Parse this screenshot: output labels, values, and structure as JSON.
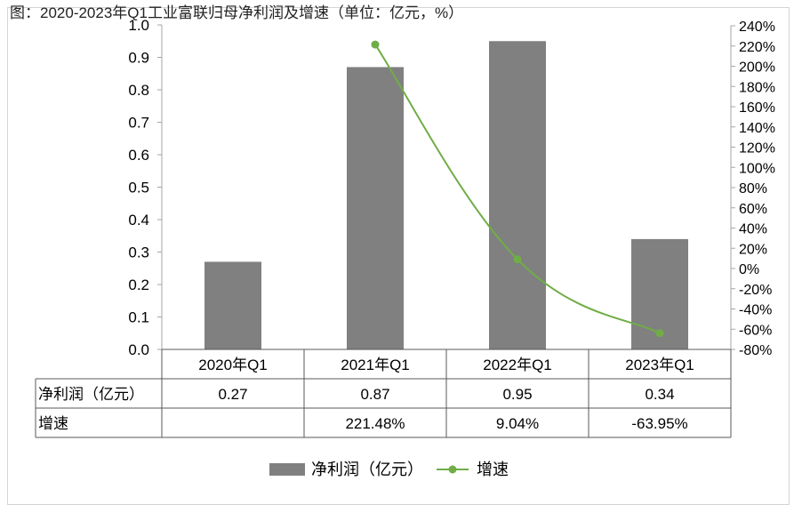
{
  "title": "图：2020-2023年Q1工业富联归母净利润及增速（单位：亿元，%）",
  "chart_data": {
    "type": "bar",
    "categories": [
      "2020年Q1",
      "2021年Q1",
      "2022年Q1",
      "2023年Q1"
    ],
    "series": [
      {
        "name": "净利润（亿元）",
        "type": "bar",
        "axis": "left",
        "values": [
          0.27,
          0.87,
          0.95,
          0.34
        ],
        "color": "#808080"
      },
      {
        "name": "增速",
        "type": "line",
        "axis": "right",
        "values": [
          null,
          221.48,
          9.04,
          -63.95
        ],
        "color": "#70ad47"
      }
    ],
    "ylim_left": [
      0,
      1.0
    ],
    "yticks_left": [
      "0.0",
      "0.1",
      "0.2",
      "0.3",
      "0.4",
      "0.5",
      "0.6",
      "0.7",
      "0.8",
      "0.9",
      "1.0"
    ],
    "ylim_right": [
      -80,
      240
    ],
    "yticks_right": [
      "-80%",
      "-60%",
      "-40%",
      "-20%",
      "0%",
      "20%",
      "40%",
      "60%",
      "80%",
      "100%",
      "120%",
      "140%",
      "160%",
      "180%",
      "200%",
      "220%",
      "240%"
    ],
    "table": {
      "rows": [
        {
          "label": "净利润（亿元）",
          "cells": [
            "0.27",
            "0.87",
            "0.95",
            "0.34"
          ]
        },
        {
          "label": "增速",
          "cells": [
            "",
            "221.48%",
            "9.04%",
            "-63.95%"
          ]
        }
      ]
    },
    "legend": {
      "position": "bottom",
      "items": [
        "净利润（亿元）",
        "增速"
      ]
    },
    "grid": false
  }
}
